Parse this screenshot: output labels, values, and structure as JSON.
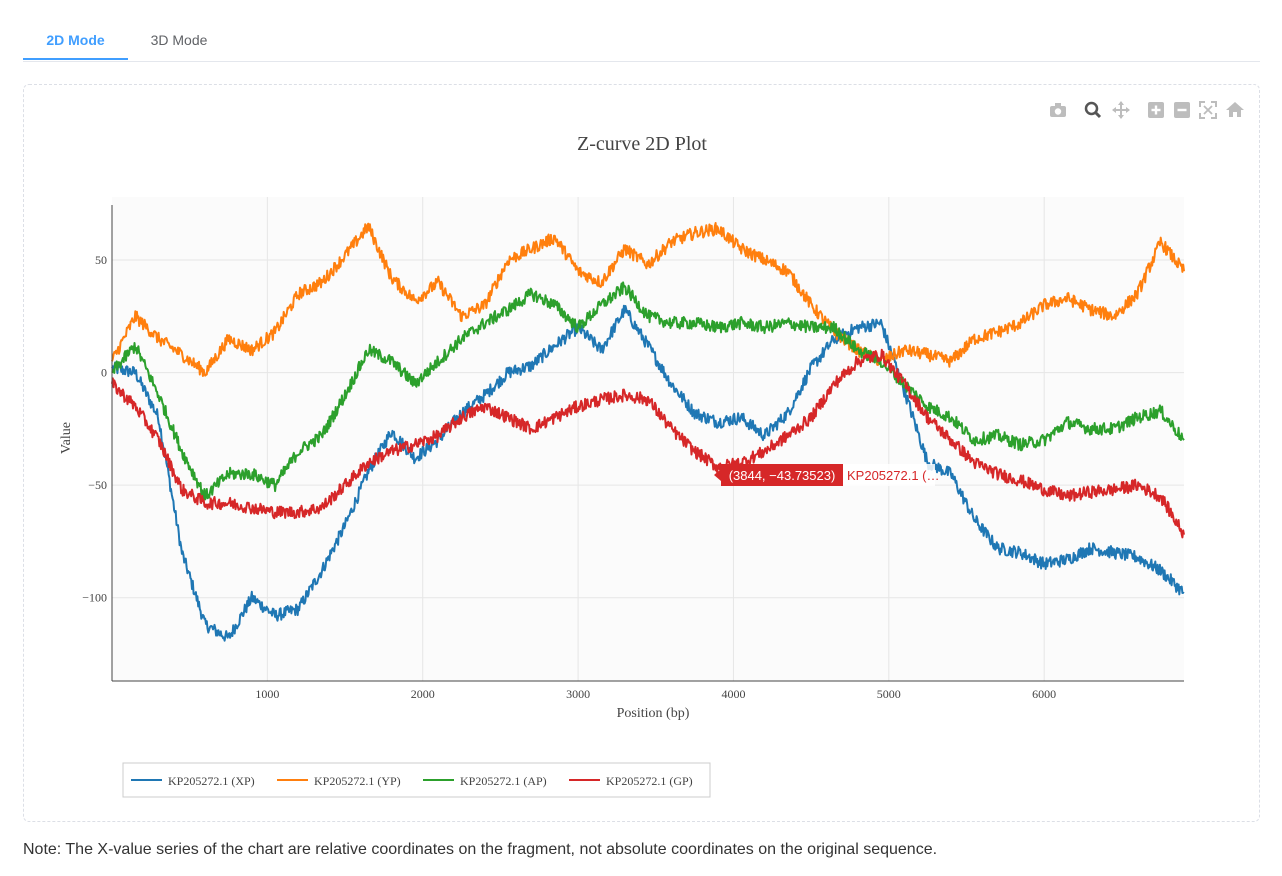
{
  "tabs": [
    {
      "label": "2D Mode",
      "active": true
    },
    {
      "label": "3D Mode",
      "active": false
    }
  ],
  "modebar": [
    "camera-icon",
    "zoom-icon",
    "pan-icon",
    "zoom-in-icon",
    "zoom-out-icon",
    "autoscale-icon",
    "reset-axes-icon"
  ],
  "note": "Note: The X-value series of the chart are relative coordinates on the fragment, not absolute coordinates on the original sequence.",
  "colors": {
    "accent": "#409eff",
    "XP": "#1f77b4",
    "YP": "#ff7f0e",
    "AP": "#2ca02c",
    "GP": "#d62728"
  },
  "chart_data": {
    "type": "line",
    "title": "Z-curve 2D Plot",
    "xlabel": "Position (bp)",
    "ylabel": "Value",
    "xlim": [
      0,
      6900
    ],
    "ylim": [
      -137,
      78
    ],
    "xticks": [
      1000,
      2000,
      3000,
      4000,
      5000,
      6000
    ],
    "xtick_labels": [
      "1000",
      "2000",
      "3000",
      "4000",
      "5000",
      "6000"
    ],
    "yticks": [
      50,
      0,
      -50,
      -100
    ],
    "ytick_labels": [
      "50",
      "0",
      "−50",
      "−100"
    ],
    "grid": true,
    "legend_position": "bottom-left",
    "x": [
      0,
      150,
      300,
      450,
      600,
      750,
      900,
      1050,
      1200,
      1350,
      1500,
      1650,
      1800,
      1950,
      2100,
      2250,
      2400,
      2550,
      2700,
      2850,
      3000,
      3150,
      3300,
      3450,
      3600,
      3750,
      3900,
      4050,
      4200,
      4350,
      4500,
      4650,
      4800,
      4950,
      5100,
      5250,
      5400,
      5550,
      5700,
      5850,
      6000,
      6150,
      6300,
      6450,
      6600,
      6750,
      6900
    ],
    "series": [
      {
        "name": "KP205272.1 (XP)",
        "values": [
          2,
          0,
          -20,
          -80,
          -112,
          -118,
          -100,
          -108,
          -105,
          -88,
          -68,
          -44,
          -26,
          -38,
          -30,
          -18,
          -10,
          0,
          3,
          12,
          20,
          10,
          28,
          12,
          -5,
          -18,
          -22,
          -20,
          -28,
          -18,
          2,
          15,
          20,
          22,
          -8,
          -40,
          -45,
          -65,
          -78,
          -80,
          -85,
          -83,
          -78,
          -80,
          -82,
          -88,
          -98
        ]
      },
      {
        "name": "KP205272.1 (YP)",
        "values": [
          5,
          25,
          15,
          8,
          0,
          15,
          10,
          18,
          35,
          40,
          52,
          65,
          42,
          32,
          40,
          25,
          30,
          50,
          55,
          60,
          45,
          40,
          55,
          48,
          58,
          62,
          64,
          55,
          50,
          45,
          30,
          18,
          10,
          5,
          10,
          8,
          5,
          15,
          18,
          22,
          30,
          33,
          28,
          25,
          35,
          58,
          45
        ]
      },
      {
        "name": "KP205272.1 (AP)",
        "values": [
          0,
          12,
          -10,
          -35,
          -55,
          -45,
          -45,
          -50,
          -35,
          -28,
          -10,
          10,
          5,
          -5,
          5,
          15,
          22,
          28,
          35,
          30,
          20,
          30,
          38,
          25,
          22,
          22,
          20,
          22,
          20,
          22,
          20,
          20,
          10,
          5,
          -5,
          -15,
          -20,
          -30,
          -28,
          -32,
          -30,
          -22,
          -25,
          -25,
          -20,
          -17,
          -30
        ]
      },
      {
        "name": "KP205272.1 (GP)",
        "values": [
          -5,
          -15,
          -30,
          -52,
          -58,
          -58,
          -60,
          -62,
          -62,
          -60,
          -50,
          -40,
          -35,
          -32,
          -28,
          -20,
          -15,
          -20,
          -25,
          -20,
          -15,
          -12,
          -10,
          -12,
          -25,
          -35,
          -42,
          -40,
          -35,
          -28,
          -20,
          -5,
          5,
          8,
          -5,
          -20,
          -30,
          -40,
          -45,
          -48,
          -52,
          -55,
          -53,
          -52,
          -50,
          -55,
          -72
        ]
      }
    ],
    "tooltip": {
      "text": "(3844, −43.73523)",
      "series_label": "KP205272.1 (…",
      "x": 3844,
      "y": -43.73523,
      "series_index": 3
    }
  }
}
